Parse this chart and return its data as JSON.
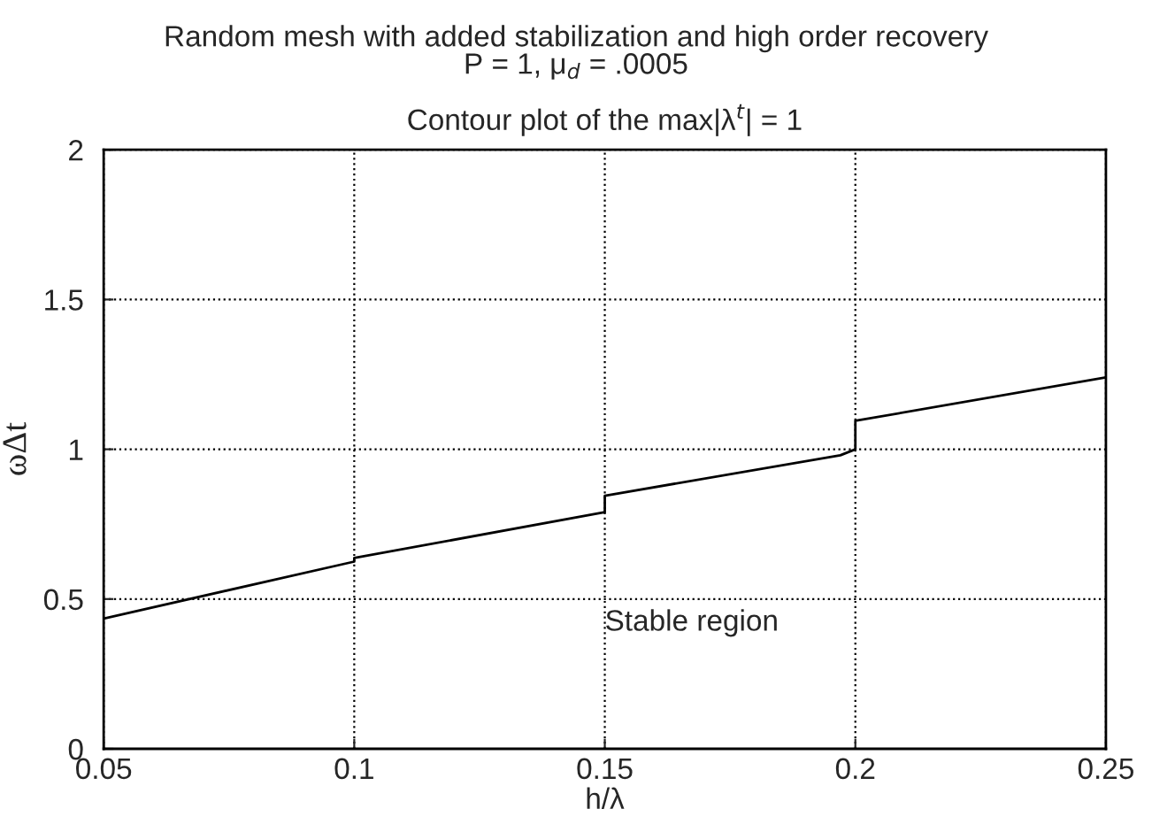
{
  "chart_data": {
    "type": "line",
    "title": "Random mesh with added stabilization and high order recovery\nP = 1, μ$_{d}$ = .0005",
    "subtitle": "Contour plot of the max|λ$^{t}$| = 1",
    "xlabel": "h/λ",
    "ylabel": "ωΔt",
    "series": [
      {
        "color": "#000000",
        "x": [
          0.05,
          0.1,
          0.1,
          0.15,
          0.15,
          0.197,
          0.2,
          0.2,
          0.25
        ],
        "values": [
          0.435,
          0.625,
          0.637,
          0.79,
          0.845,
          0.98,
          1.0,
          1.095,
          1.24
        ]
      }
    ],
    "xlim": [
      0.05,
      0.25
    ],
    "xticks": [
      0.05,
      0.1,
      0.15,
      0.2,
      0.25
    ],
    "ylim": [
      0,
      2
    ],
    "yticks": [
      0,
      0.5,
      1,
      1.5,
      2
    ],
    "grid": true,
    "line_style": "solid",
    "annotations": [
      "Stable region"
    ]
  }
}
